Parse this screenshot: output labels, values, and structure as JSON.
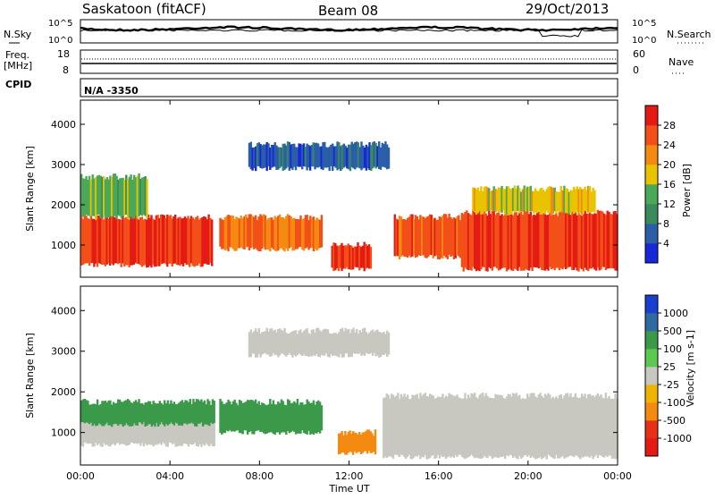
{
  "header": {
    "site": "Saskatoon (fitACF)",
    "beam": "Beam 08",
    "date": "29/Oct/2013"
  },
  "strip_labels": {
    "nsky": "N.Sky",
    "nsky_top": "10^5",
    "nsky_bottom": "10^0",
    "nsearch": "N.Search",
    "nsearch_top": "10^5",
    "nsearch_bottom": "10^0",
    "freq": "Freq.",
    "freq_unit": "[MHz]",
    "freq_top": "18",
    "freq_bottom": "8",
    "nave": "Nave",
    "nave_top": "60",
    "nave_bottom": "0",
    "cpid": "CPID",
    "cpid_value": "N/A -3350"
  },
  "chart_data": [
    {
      "type": "heatmap",
      "quantity": "Power",
      "ylabel": "Slant Range [km]",
      "ylim": [
        200,
        4600
      ],
      "yticks": [
        "1000",
        "2000",
        "3000",
        "4000"
      ],
      "xlabel": "Time UT",
      "xticks": [
        "00:00",
        "04:00",
        "08:00",
        "12:00",
        "16:00",
        "20:00",
        "00:00"
      ],
      "colorbar_label": "Power [dB]",
      "colorbar_ticks": [
        "4",
        "8",
        "12",
        "16",
        "20",
        "24",
        "28"
      ],
      "colorbar_colors": [
        "#1628d8",
        "#2a5fa8",
        "#3a8a5c",
        "#4aa858",
        "#e8c400",
        "#f58a10",
        "#f25018",
        "#e41a14"
      ],
      "regions": [
        {
          "t0": 0.0,
          "t1": 5.9,
          "r0": 500,
          "r1": 1700,
          "level": 28
        },
        {
          "t0": 0.0,
          "t1": 3.0,
          "r0": 1700,
          "r1": 2700,
          "level": 14
        },
        {
          "t0": 6.2,
          "t1": 10.8,
          "r0": 900,
          "r1": 1700,
          "level": 24
        },
        {
          "t0": 7.5,
          "t1": 13.8,
          "r0": 2900,
          "r1": 3500,
          "level": 6
        },
        {
          "t0": 11.2,
          "t1": 13.0,
          "r0": 400,
          "r1": 1000,
          "level": 28
        },
        {
          "t0": 14.0,
          "t1": 17.0,
          "r0": 700,
          "r1": 1700,
          "level": 26
        },
        {
          "t0": 17.0,
          "t1": 24.0,
          "r0": 400,
          "r1": 1800,
          "level": 28
        },
        {
          "t0": 17.5,
          "t1": 23.0,
          "r0": 1800,
          "r1": 2400,
          "level": 18
        }
      ]
    },
    {
      "type": "heatmap",
      "quantity": "Velocity",
      "ylabel": "Slant Range [km]",
      "ylim": [
        200,
        4600
      ],
      "yticks": [
        "1000",
        "2000",
        "3000",
        "4000"
      ],
      "xlabel": "Time UT",
      "xticks": [
        "00:00",
        "04:00",
        "08:00",
        "12:00",
        "16:00",
        "20:00",
        "00:00"
      ],
      "colorbar_label": "Velocity [m s-1]",
      "colorbar_ticks": [
        "1000",
        "500",
        "100",
        "25",
        "-25",
        "-100",
        "-500",
        "-1000"
      ],
      "colorbar_colors": [
        "#1a3ecf",
        "#2f6aa0",
        "#3a9a4a",
        "#5cc850",
        "#c8c8c0",
        "#f0b400",
        "#f58a10",
        "#e83018",
        "#e41a14"
      ],
      "regions": [
        {
          "t0": 0.0,
          "t1": 6.0,
          "r0": 700,
          "r1": 1400,
          "level": 0
        },
        {
          "t0": 0.0,
          "t1": 6.0,
          "r0": 1200,
          "r1": 1750,
          "level": 150
        },
        {
          "t0": 6.2,
          "t1": 10.8,
          "r0": 1000,
          "r1": 1750,
          "level": 300
        },
        {
          "t0": 11.5,
          "t1": 13.2,
          "r0": 500,
          "r1": 1000,
          "level": -300
        },
        {
          "t0": 13.5,
          "t1": 24.0,
          "r0": 400,
          "r1": 1900,
          "level": 0
        },
        {
          "t0": 7.5,
          "t1": 13.8,
          "r0": 2900,
          "r1": 3500,
          "level": 0
        }
      ]
    }
  ]
}
